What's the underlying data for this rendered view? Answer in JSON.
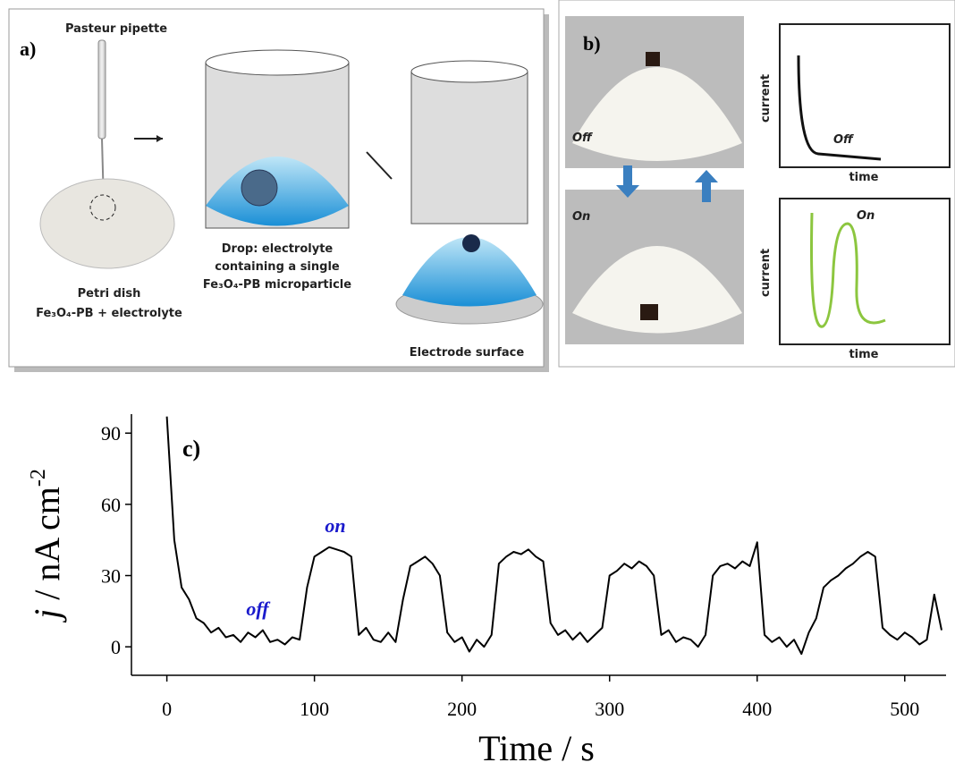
{
  "panel_a": {
    "label": "a)",
    "pipette": "Pasteur pipette",
    "dish": "Petri dish",
    "dish_content": "Fe₃O₄-PB + electrolyte",
    "drop_lines": [
      "Drop:  electrolyte",
      "containing  a single",
      "Fe₃O₄-PB microparticle"
    ],
    "electrode": "Electrode surface"
  },
  "panel_b": {
    "label": "b)",
    "photo_off": "Off",
    "photo_on": "On",
    "graph_off": {
      "ylabel": "current",
      "xlabel": "time",
      "state": "Off"
    },
    "graph_on": {
      "ylabel": "current",
      "xlabel": "time",
      "state": "On"
    }
  },
  "chart_data": {
    "type": "line",
    "panel_label": "c)",
    "xlabel": "Time / s",
    "ylabel": {
      "italic": "j",
      "text": " / nA cm",
      "sup": "-2"
    },
    "annotations": [
      "off",
      "on"
    ],
    "annotation_color": "#1a1acc",
    "xlim": [
      -24,
      528
    ],
    "ylim": [
      -12,
      98
    ],
    "xticks": [
      0,
      100,
      200,
      300,
      400,
      500
    ],
    "yticks": [
      0,
      30,
      60,
      90
    ],
    "series": [
      {
        "color": "#000000",
        "x": [
          0,
          5,
          10,
          15,
          20,
          25,
          30,
          35,
          40,
          45,
          50,
          55,
          60,
          65,
          70,
          75,
          80,
          85,
          90,
          95,
          100,
          105,
          110,
          115,
          120,
          125,
          130,
          135,
          140,
          145,
          150,
          155,
          160,
          165,
          170,
          175,
          180,
          185,
          190,
          195,
          200,
          205,
          210,
          215,
          220,
          225,
          230,
          235,
          240,
          245,
          250,
          255,
          260,
          265,
          270,
          275,
          280,
          285,
          290,
          295,
          300,
          305,
          310,
          315,
          320,
          325,
          330,
          335,
          340,
          345,
          350,
          355,
          360,
          365,
          370,
          375,
          380,
          385,
          390,
          395,
          400,
          405,
          410,
          415,
          420,
          425,
          430,
          435,
          440,
          445,
          450,
          455,
          460,
          465,
          470,
          475,
          480,
          485,
          490,
          495,
          500,
          505,
          510,
          515,
          520,
          525
        ],
        "values": [
          97,
          45,
          25,
          20,
          12,
          10,
          6,
          8,
          4,
          5,
          2,
          6,
          4,
          7,
          2,
          3,
          1,
          4,
          3,
          25,
          38,
          40,
          42,
          41,
          40,
          38,
          5,
          8,
          3,
          2,
          6,
          2,
          20,
          34,
          36,
          38,
          35,
          30,
          6,
          2,
          4,
          -2,
          3,
          0,
          5,
          35,
          38,
          40,
          39,
          41,
          38,
          36,
          10,
          5,
          7,
          3,
          6,
          2,
          5,
          8,
          30,
          32,
          35,
          33,
          36,
          34,
          30,
          5,
          7,
          2,
          4,
          3,
          0,
          5,
          30,
          34,
          35,
          33,
          36,
          34,
          44,
          5,
          2,
          4,
          0,
          3,
          -3,
          6,
          12,
          25,
          28,
          30,
          33,
          35,
          38,
          40,
          38,
          8,
          5,
          3,
          6,
          4,
          1,
          3,
          22,
          7
        ]
      }
    ]
  }
}
